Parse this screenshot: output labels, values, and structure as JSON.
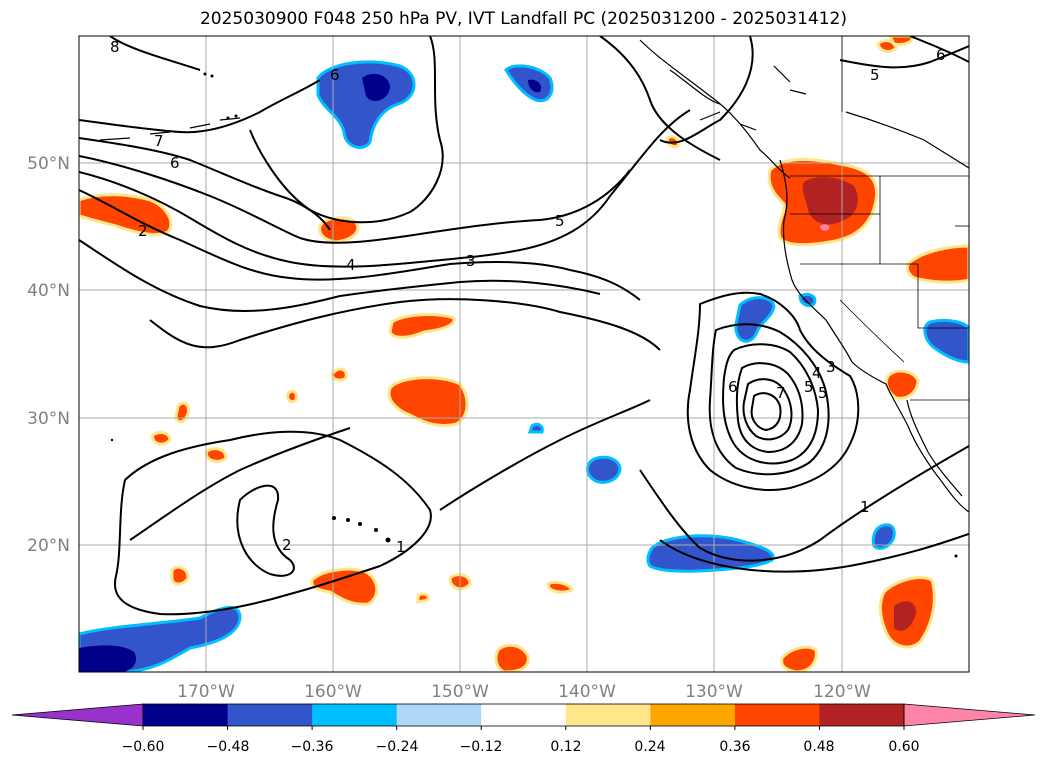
{
  "title": "2025030900 F048 250 hPa PV, IVT Landfall PC (2025031200 - 2025031412)",
  "map": {
    "projection": "PlateCarree",
    "lon_range": [
      -180,
      -110
    ],
    "lat_range": [
      10,
      60
    ],
    "gridlines": true,
    "lat_labels": [
      "50°N",
      "40°N",
      "30°N",
      "20°N"
    ],
    "lon_labels": [
      "170°W",
      "160°W",
      "150°W",
      "140°W",
      "130°W",
      "120°W"
    ],
    "contour_labels": [
      "8",
      "7",
      "6",
      "5",
      "4",
      "3",
      "2",
      "1",
      "6",
      "5",
      "4",
      "3",
      "2",
      "1",
      "5",
      "6",
      "6",
      "7",
      "5",
      "4",
      "3",
      "2",
      "1"
    ]
  },
  "colorbar": {
    "ticks": [
      "−0.60",
      "−0.48",
      "−0.36",
      "−0.24",
      "−0.12",
      "0.12",
      "0.24",
      "0.36",
      "0.48",
      "0.60"
    ],
    "colors": [
      "#9932cc",
      "#00008b",
      "#3355cc",
      "#00bfff",
      "#add8f5",
      "#ffffff",
      "#ffe68a",
      "#ffa500",
      "#ff4500",
      "#b22222",
      "#ff85a8"
    ],
    "extend": "both"
  }
}
